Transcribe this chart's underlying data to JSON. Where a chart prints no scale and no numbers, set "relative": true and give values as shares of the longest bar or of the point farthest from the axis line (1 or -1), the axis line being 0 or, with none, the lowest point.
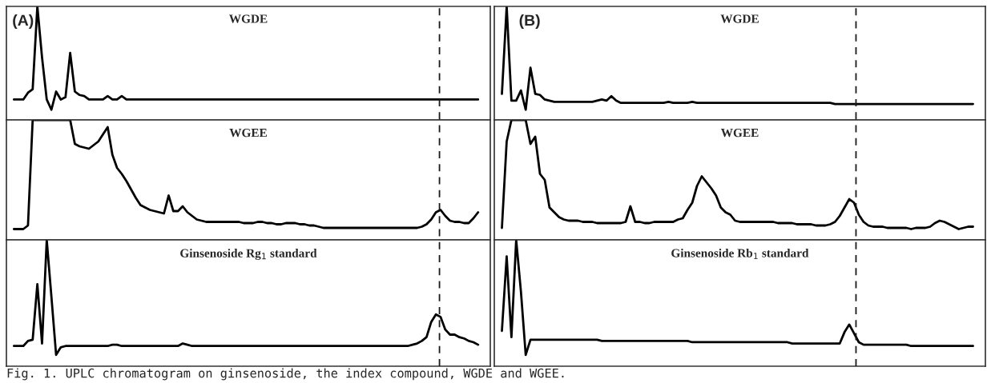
{
  "chart_data": [
    {
      "type": "line",
      "title": "WGDE",
      "relative": true,
      "categories": [
        null,
        null,
        null,
        null,
        null,
        null,
        null,
        null,
        null,
        null,
        null,
        null,
        null,
        null,
        null,
        null,
        null,
        null,
        null,
        null,
        null,
        null,
        null,
        null,
        null,
        null,
        null,
        null,
        null,
        null,
        null,
        null,
        null,
        null,
        null,
        null,
        null,
        null,
        null,
        null,
        null,
        null,
        null,
        null,
        null,
        null,
        null,
        null,
        null,
        null,
        null,
        null,
        null,
        null,
        null,
        null,
        null,
        null,
        null,
        null,
        null,
        null,
        null,
        null,
        null,
        null,
        null,
        null,
        null,
        null,
        null,
        null,
        null,
        null,
        null,
        null,
        null,
        null,
        null,
        null,
        null,
        null,
        null,
        null,
        null,
        null,
        null,
        null,
        null,
        null,
        null,
        null,
        null,
        null,
        null,
        null,
        null,
        null,
        null,
        null
      ],
      "series": [
        {
          "color": "#000000",
          "values": [
            0.18,
            0.18,
            0.18,
            0.24,
            0.27,
            1,
            0.55,
            0.18,
            0.09,
            0.25,
            0.18,
            0.2,
            0.59,
            0.25,
            0.22,
            0.21,
            0.18,
            0.18,
            0.18,
            0.18,
            0.21,
            0.18,
            0.18,
            0.21,
            0.18,
            0.18,
            0.18,
            0.18,
            0.18,
            0.18,
            0.18,
            0.18,
            0.18,
            0.18,
            0.18,
            0.18,
            0.18,
            0.18,
            0.18,
            0.18,
            0.18,
            0.18,
            0.18,
            0.18,
            0.18,
            0.18,
            0.18,
            0.18,
            0.18,
            0.18,
            0.18,
            0.18,
            0.18,
            0.18,
            0.18,
            0.18,
            0.18,
            0.18,
            0.18,
            0.18,
            0.18,
            0.18,
            0.18,
            0.18,
            0.18,
            0.18,
            0.18,
            0.18,
            0.18,
            0.18,
            0.18,
            0.18,
            0.18,
            0.18,
            0.18,
            0.18,
            0.18,
            0.18,
            0.18,
            0.18,
            0.18,
            0.18,
            0.18,
            0.18,
            0.18,
            0.18,
            0.18,
            0.18,
            0.18,
            0.18,
            0.18,
            0.18,
            0.18,
            0.18,
            0.18,
            0.18,
            0.18,
            0.18,
            0.18,
            0.18
          ]
        }
      ],
      "annotations": [
        "(A)",
        "Fig. 1. UPLC chromatogram on ginsenoside, the index compound, WGDE and WGEE."
      ]
    },
    {
      "type": "line",
      "title": "WGEE",
      "relative": true,
      "categories": [
        null,
        null,
        null,
        null,
        null,
        null,
        null,
        null,
        null,
        null,
        null,
        null,
        null,
        null,
        null,
        null,
        null,
        null,
        null,
        null,
        null,
        null,
        null,
        null,
        null,
        null,
        null,
        null,
        null,
        null,
        null,
        null,
        null,
        null,
        null,
        null,
        null,
        null,
        null,
        null,
        null,
        null,
        null,
        null,
        null,
        null,
        null,
        null,
        null,
        null,
        null,
        null,
        null,
        null,
        null,
        null,
        null,
        null,
        null,
        null,
        null,
        null,
        null,
        null,
        null,
        null,
        null,
        null,
        null,
        null,
        null,
        null,
        null,
        null,
        null,
        null,
        null,
        null,
        null,
        null,
        null,
        null,
        null,
        null,
        null,
        null,
        null,
        null,
        null,
        null,
        null,
        null,
        null,
        null,
        null,
        null,
        null,
        null,
        null,
        null
      ],
      "series": [
        {
          "color": "#000000",
          "values": [
            0.09,
            0.09,
            0.09,
            0.12,
            1,
            1,
            1,
            1,
            1,
            1,
            1,
            1,
            1,
            0.8,
            0.78,
            0.77,
            0.76,
            0.79,
            0.82,
            0.88,
            0.94,
            0.71,
            0.6,
            0.55,
            0.49,
            0.42,
            0.35,
            0.29,
            0.27,
            0.25,
            0.24,
            0.23,
            0.22,
            0.37,
            0.24,
            0.24,
            0.28,
            0.23,
            0.2,
            0.17,
            0.16,
            0.15,
            0.15,
            0.15,
            0.15,
            0.15,
            0.15,
            0.15,
            0.15,
            0.14,
            0.14,
            0.14,
            0.15,
            0.15,
            0.14,
            0.14,
            0.13,
            0.13,
            0.14,
            0.14,
            0.14,
            0.13,
            0.13,
            0.12,
            0.12,
            0.11,
            0.1,
            0.1,
            0.1,
            0.1,
            0.1,
            0.1,
            0.1,
            0.1,
            0.1,
            0.1,
            0.1,
            0.1,
            0.1,
            0.1,
            0.1,
            0.1,
            0.1,
            0.1,
            0.1,
            0.1,
            0.1,
            0.11,
            0.13,
            0.17,
            0.23,
            0.25,
            0.2,
            0.16,
            0.15,
            0.15,
            0.14,
            0.14,
            0.18,
            0.23
          ]
        }
      ]
    },
    {
      "type": "line",
      "title": "Ginsenoside Rg$_{1}$ standard",
      "relative": true,
      "categories": [
        null,
        null,
        null,
        null,
        null,
        null,
        null,
        null,
        null,
        null,
        null,
        null,
        null,
        null,
        null,
        null,
        null,
        null,
        null,
        null,
        null,
        null,
        null,
        null,
        null,
        null,
        null,
        null,
        null,
        null,
        null,
        null,
        null,
        null,
        null,
        null,
        null,
        null,
        null,
        null,
        null,
        null,
        null,
        null,
        null,
        null,
        null,
        null,
        null,
        null,
        null,
        null,
        null,
        null,
        null,
        null,
        null,
        null,
        null,
        null,
        null,
        null,
        null,
        null,
        null,
        null,
        null,
        null,
        null,
        null,
        null,
        null,
        null,
        null,
        null,
        null,
        null,
        null,
        null,
        null,
        null,
        null,
        null,
        null,
        null,
        null,
        null,
        null,
        null,
        null,
        null,
        null,
        null,
        null,
        null,
        null,
        null,
        null,
        null,
        null
      ],
      "series": [
        {
          "color": "#000000",
          "values": [
            0.16,
            0.16,
            0.16,
            0.2,
            0.21,
            0.65,
            0.18,
            1,
            0.55,
            0.09,
            0.15,
            0.16,
            0.16,
            0.16,
            0.16,
            0.16,
            0.16,
            0.16,
            0.16,
            0.16,
            0.16,
            0.17,
            0.17,
            0.16,
            0.16,
            0.16,
            0.16,
            0.16,
            0.16,
            0.16,
            0.16,
            0.16,
            0.16,
            0.16,
            0.16,
            0.16,
            0.18,
            0.17,
            0.16,
            0.16,
            0.16,
            0.16,
            0.16,
            0.16,
            0.16,
            0.16,
            0.16,
            0.16,
            0.16,
            0.16,
            0.16,
            0.16,
            0.16,
            0.16,
            0.16,
            0.16,
            0.16,
            0.16,
            0.16,
            0.16,
            0.16,
            0.16,
            0.16,
            0.16,
            0.16,
            0.16,
            0.16,
            0.16,
            0.16,
            0.16,
            0.16,
            0.16,
            0.16,
            0.16,
            0.16,
            0.16,
            0.16,
            0.16,
            0.16,
            0.16,
            0.16,
            0.16,
            0.16,
            0.16,
            0.16,
            0.17,
            0.18,
            0.2,
            0.23,
            0.35,
            0.41,
            0.39,
            0.29,
            0.25,
            0.25,
            0.23,
            0.22,
            0.2,
            0.19,
            0.17
          ]
        }
      ]
    },
    {
      "type": "line",
      "title": "WGDE",
      "relative": true,
      "categories": [
        null,
        null,
        null,
        null,
        null,
        null,
        null,
        null,
        null,
        null,
        null,
        null,
        null,
        null,
        null,
        null,
        null,
        null,
        null,
        null,
        null,
        null,
        null,
        null,
        null,
        null,
        null,
        null,
        null,
        null,
        null,
        null,
        null,
        null,
        null,
        null,
        null,
        null,
        null,
        null,
        null,
        null,
        null,
        null,
        null,
        null,
        null,
        null,
        null,
        null,
        null,
        null,
        null,
        null,
        null,
        null,
        null,
        null,
        null,
        null,
        null,
        null,
        null,
        null,
        null,
        null,
        null,
        null,
        null,
        null,
        null,
        null,
        null,
        null,
        null,
        null,
        null,
        null,
        null,
        null,
        null,
        null,
        null,
        null,
        null,
        null,
        null,
        null,
        null,
        null,
        null,
        null,
        null,
        null,
        null,
        null,
        null,
        null,
        null,
        null
      ],
      "series": [
        {
          "color": "#000000",
          "values": [
            0.23,
            1,
            0.17,
            0.17,
            0.26,
            0.09,
            0.46,
            0.23,
            0.22,
            0.18,
            0.17,
            0.16,
            0.16,
            0.16,
            0.16,
            0.16,
            0.16,
            0.16,
            0.16,
            0.16,
            0.17,
            0.18,
            0.17,
            0.21,
            0.17,
            0.15,
            0.15,
            0.15,
            0.15,
            0.15,
            0.15,
            0.15,
            0.15,
            0.15,
            0.15,
            0.16,
            0.15,
            0.15,
            0.15,
            0.15,
            0.16,
            0.15,
            0.15,
            0.15,
            0.15,
            0.15,
            0.15,
            0.15,
            0.15,
            0.15,
            0.15,
            0.15,
            0.15,
            0.15,
            0.15,
            0.15,
            0.15,
            0.15,
            0.15,
            0.15,
            0.15,
            0.15,
            0.15,
            0.15,
            0.15,
            0.15,
            0.15,
            0.15,
            0.15,
            0.15,
            0.14,
            0.14,
            0.14,
            0.14,
            0.14,
            0.14,
            0.14,
            0.14,
            0.14,
            0.14,
            0.14,
            0.14,
            0.14,
            0.14,
            0.14,
            0.14,
            0.14,
            0.14,
            0.14,
            0.14,
            0.14,
            0.14,
            0.14,
            0.14,
            0.14,
            0.14,
            0.14,
            0.14,
            0.14,
            0.14
          ]
        }
      ],
      "annotations": [
        "(B)"
      ]
    },
    {
      "type": "line",
      "title": "WGEE",
      "relative": true,
      "categories": [
        null,
        null,
        null,
        null,
        null,
        null,
        null,
        null,
        null,
        null,
        null,
        null,
        null,
        null,
        null,
        null,
        null,
        null,
        null,
        null,
        null,
        null,
        null,
        null,
        null,
        null,
        null,
        null,
        null,
        null,
        null,
        null,
        null,
        null,
        null,
        null,
        null,
        null,
        null,
        null,
        null,
        null,
        null,
        null,
        null,
        null,
        null,
        null,
        null,
        null,
        null,
        null,
        null,
        null,
        null,
        null,
        null,
        null,
        null,
        null,
        null,
        null,
        null,
        null,
        null,
        null,
        null,
        null,
        null,
        null,
        null,
        null,
        null,
        null,
        null,
        null,
        null,
        null,
        null,
        null,
        null,
        null,
        null,
        null,
        null,
        null,
        null,
        null,
        null,
        null,
        null,
        null,
        null,
        null,
        null,
        null,
        null,
        null,
        null,
        null
      ],
      "series": [
        {
          "color": "#000000",
          "values": [
            0.1,
            0.82,
            1,
            1,
            1,
            1,
            0.8,
            0.86,
            0.55,
            0.5,
            0.27,
            0.23,
            0.19,
            0.17,
            0.16,
            0.16,
            0.16,
            0.15,
            0.15,
            0.15,
            0.14,
            0.14,
            0.14,
            0.14,
            0.14,
            0.14,
            0.15,
            0.28,
            0.15,
            0.15,
            0.14,
            0.14,
            0.15,
            0.15,
            0.15,
            0.15,
            0.15,
            0.17,
            0.18,
            0.25,
            0.31,
            0.45,
            0.53,
            0.48,
            0.43,
            0.37,
            0.27,
            0.23,
            0.21,
            0.16,
            0.15,
            0.15,
            0.15,
            0.15,
            0.15,
            0.15,
            0.15,
            0.15,
            0.14,
            0.14,
            0.14,
            0.14,
            0.13,
            0.13,
            0.13,
            0.13,
            0.12,
            0.12,
            0.12,
            0.13,
            0.15,
            0.2,
            0.27,
            0.34,
            0.31,
            0.21,
            0.15,
            0.12,
            0.11,
            0.11,
            0.11,
            0.1,
            0.1,
            0.1,
            0.1,
            0.1,
            0.09,
            0.1,
            0.1,
            0.1,
            0.11,
            0.14,
            0.16,
            0.15,
            0.13,
            0.11,
            0.09,
            0.1,
            0.11,
            0.11
          ]
        }
      ]
    },
    {
      "type": "line",
      "title": "Ginsenoside Rb$_{1}$ standard",
      "relative": true,
      "categories": [
        null,
        null,
        null,
        null,
        null,
        null,
        null,
        null,
        null,
        null,
        null,
        null,
        null,
        null,
        null,
        null,
        null,
        null,
        null,
        null,
        null,
        null,
        null,
        null,
        null,
        null,
        null,
        null,
        null,
        null,
        null,
        null,
        null,
        null,
        null,
        null,
        null,
        null,
        null,
        null,
        null,
        null,
        null,
        null,
        null,
        null,
        null,
        null,
        null,
        null,
        null,
        null,
        null,
        null,
        null,
        null,
        null,
        null,
        null,
        null,
        null,
        null,
        null,
        null,
        null,
        null,
        null,
        null,
        null,
        null,
        null,
        null,
        null,
        null,
        null,
        null,
        null,
        null,
        null,
        null,
        null,
        null,
        null,
        null,
        null,
        null,
        null,
        null,
        null,
        null,
        null,
        null,
        null,
        null,
        null,
        null,
        null,
        null,
        null,
        null
      ],
      "series": [
        {
          "color": "#000000",
          "values": [
            0.28,
            0.87,
            0.23,
            1,
            0.59,
            0.09,
            0.21,
            0.21,
            0.21,
            0.21,
            0.21,
            0.21,
            0.21,
            0.21,
            0.21,
            0.21,
            0.21,
            0.21,
            0.21,
            0.21,
            0.21,
            0.2,
            0.2,
            0.2,
            0.2,
            0.2,
            0.2,
            0.2,
            0.2,
            0.2,
            0.2,
            0.2,
            0.2,
            0.2,
            0.2,
            0.2,
            0.2,
            0.2,
            0.2,
            0.2,
            0.19,
            0.19,
            0.19,
            0.19,
            0.19,
            0.19,
            0.19,
            0.19,
            0.19,
            0.19,
            0.19,
            0.19,
            0.19,
            0.19,
            0.19,
            0.19,
            0.19,
            0.19,
            0.19,
            0.19,
            0.19,
            0.18,
            0.18,
            0.18,
            0.18,
            0.18,
            0.18,
            0.18,
            0.18,
            0.18,
            0.18,
            0.18,
            0.27,
            0.33,
            0.26,
            0.19,
            0.17,
            0.17,
            0.17,
            0.17,
            0.17,
            0.17,
            0.17,
            0.17,
            0.17,
            0.17,
            0.16,
            0.16,
            0.16,
            0.16,
            0.16,
            0.16,
            0.16,
            0.16,
            0.16,
            0.16,
            0.16,
            0.16,
            0.16,
            0.16
          ]
        }
      ]
    }
  ]
}
